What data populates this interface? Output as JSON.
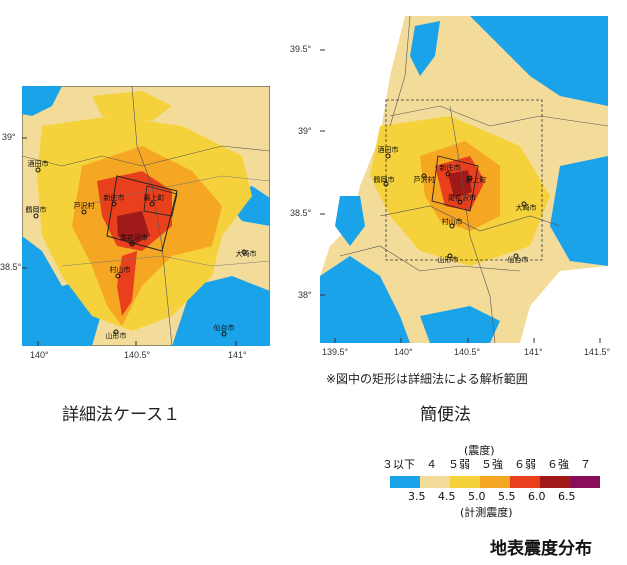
{
  "left_map": {
    "lat_ticks": [
      "39°",
      "38.5°"
    ],
    "lon_ticks": [
      "140°",
      "140.5°",
      "141°"
    ],
    "places": [
      {
        "name": "酒田市"
      },
      {
        "name": "鶴岡市"
      },
      {
        "name": "芦沢村"
      },
      {
        "name": "新庄市"
      },
      {
        "name": "最上町"
      },
      {
        "name": "尾花沢市"
      },
      {
        "name": "村山市"
      },
      {
        "name": "大崎市"
      },
      {
        "name": "山形市"
      },
      {
        "name": "仙台市"
      }
    ],
    "caption": "詳細法ケース１"
  },
  "right_map": {
    "lat_ticks": [
      "39.5°",
      "39°",
      "38.5°",
      "38°"
    ],
    "lon_ticks": [
      "139.5°",
      "140°",
      "140.5°",
      "141°",
      "141.5°"
    ],
    "places": [
      {
        "name": "酒田市"
      },
      {
        "name": "鶴岡市"
      },
      {
        "name": "芦沢村"
      },
      {
        "name": "新庄市"
      },
      {
        "name": "最上町"
      },
      {
        "name": "尾花沢市"
      },
      {
        "name": "村山市"
      },
      {
        "name": "大崎市"
      },
      {
        "name": "山形市"
      },
      {
        "name": "仙台市"
      }
    ],
    "note": "※図中の矩形は詳細法による解析範囲",
    "caption": "簡便法"
  },
  "legend": {
    "top_title": "(震度)",
    "intensity_labels": "３以下　４　５弱　５強　６弱　６強　７",
    "scale_ticks": [
      "3.5",
      "4.5",
      "5.0",
      "5.5",
      "6.0",
      "6.5"
    ],
    "bottom_title": "(計測震度)",
    "colors": [
      "#1aa3e8",
      "#f3dc9a",
      "#f5d23b",
      "#f5a623",
      "#e8401c",
      "#a01a1a",
      "#8a0d5a"
    ]
  },
  "title": "地表震度分布"
}
